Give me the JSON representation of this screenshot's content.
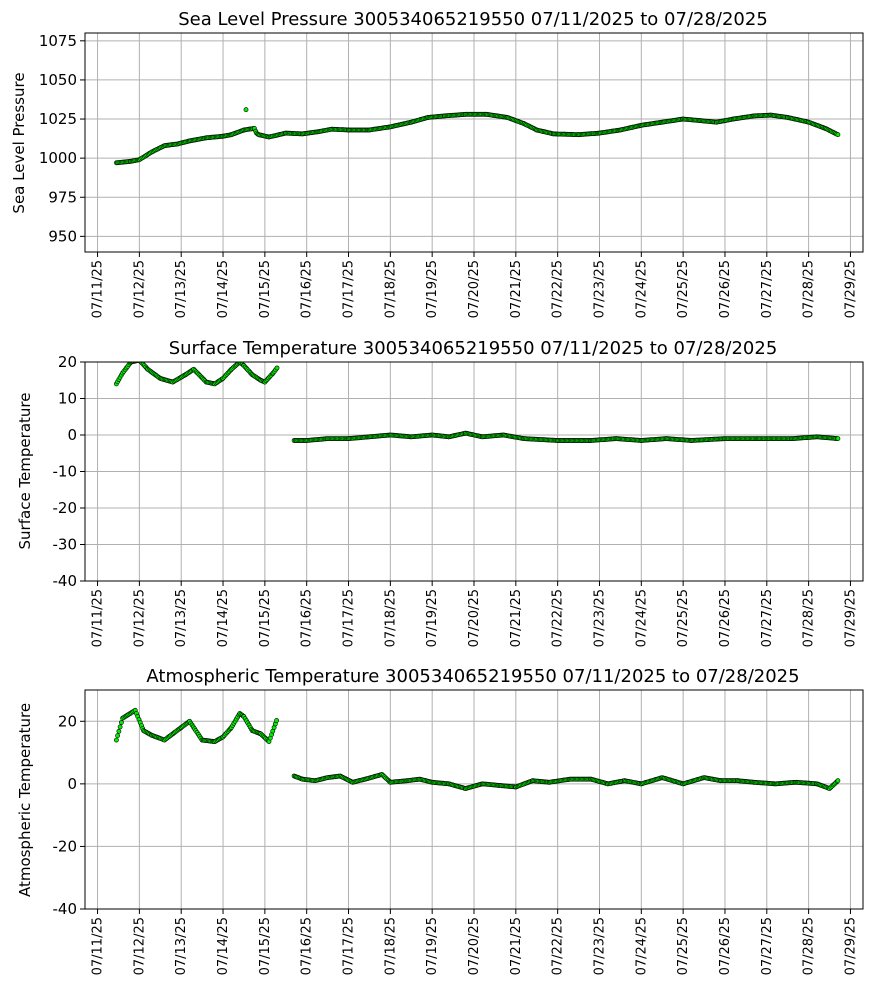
{
  "chart_data": [
    {
      "type": "scatter",
      "title": "Sea Level Pressure 300534065219550  07/11/2025 to 07/28/2025",
      "ylabel": "Sea Level Pressure",
      "ylim": [
        940,
        1080
      ],
      "yticks": [
        950,
        975,
        1000,
        1025,
        1050,
        1075
      ],
      "xlim_days": [
        -0.3,
        18.3
      ],
      "xtick_labels": [
        "07/11/25",
        "07/12/25",
        "07/13/25",
        "07/14/25",
        "07/15/25",
        "07/16/25",
        "07/17/25",
        "07/18/25",
        "07/19/25",
        "07/20/25",
        "07/21/25",
        "07/22/25",
        "07/23/25",
        "07/24/25",
        "07/25/25",
        "07/26/25",
        "07/27/25",
        "07/28/25",
        "07/29/25"
      ],
      "grid": true,
      "marker_color": "#00ee00",
      "series": [
        {
          "knots": [
            [
              0.45,
              997
            ],
            [
              0.8,
              998
            ],
            [
              1.0,
              999
            ],
            [
              1.3,
              1004
            ],
            [
              1.6,
              1008
            ],
            [
              1.9,
              1009
            ],
            [
              2.2,
              1011
            ],
            [
              2.6,
              1013
            ],
            [
              3.0,
              1014
            ],
            [
              3.2,
              1015
            ],
            [
              3.5,
              1018
            ],
            [
              3.75,
              1019
            ],
            [
              3.8,
              1016
            ],
            [
              3.85,
              1015
            ],
            [
              4.1,
              1013.5
            ],
            [
              4.5,
              1016
            ],
            [
              4.9,
              1015.5
            ],
            [
              5.3,
              1017
            ],
            [
              5.6,
              1018.5
            ],
            [
              6.0,
              1018
            ],
            [
              6.5,
              1018
            ],
            [
              7.0,
              1020
            ],
            [
              7.5,
              1023
            ],
            [
              7.9,
              1026
            ],
            [
              8.3,
              1027
            ],
            [
              8.8,
              1028
            ],
            [
              9.3,
              1028
            ],
            [
              9.8,
              1026
            ],
            [
              10.2,
              1022
            ],
            [
              10.5,
              1018
            ],
            [
              10.9,
              1015.5
            ],
            [
              11.5,
              1015
            ],
            [
              12.0,
              1016
            ],
            [
              12.5,
              1018
            ],
            [
              13.0,
              1021
            ],
            [
              13.5,
              1023
            ],
            [
              14.0,
              1025
            ],
            [
              14.4,
              1024
            ],
            [
              14.8,
              1023
            ],
            [
              15.2,
              1025
            ],
            [
              15.7,
              1027
            ],
            [
              16.1,
              1027.5
            ],
            [
              16.5,
              1026
            ],
            [
              17.0,
              1023
            ],
            [
              17.4,
              1019
            ],
            [
              17.7,
              1015
            ]
          ],
          "outliers": [
            [
              3.55,
              1031
            ]
          ]
        }
      ]
    },
    {
      "type": "scatter",
      "title": "Surface Temperature 300534065219550  07/11/2025 to 07/28/2025",
      "ylabel": "Surface Temperature",
      "ylim": [
        -40,
        20
      ],
      "yticks": [
        -40,
        -30,
        -20,
        -10,
        0,
        10,
        20
      ],
      "xlim_days": [
        -0.3,
        18.3
      ],
      "xtick_labels": [
        "07/11/25",
        "07/12/25",
        "07/13/25",
        "07/14/25",
        "07/15/25",
        "07/16/25",
        "07/17/25",
        "07/18/25",
        "07/19/25",
        "07/20/25",
        "07/21/25",
        "07/22/25",
        "07/23/25",
        "07/24/25",
        "07/25/25",
        "07/26/25",
        "07/27/25",
        "07/28/25",
        "07/29/25"
      ],
      "grid": true,
      "marker_color": "#00ee00",
      "series": [
        {
          "knots": [
            [
              0.45,
              14
            ],
            [
              0.6,
              17
            ],
            [
              0.8,
              20
            ],
            [
              1.0,
              20.5
            ],
            [
              1.2,
              18
            ],
            [
              1.5,
              15.5
            ],
            [
              1.8,
              14.5
            ],
            [
              2.1,
              16.5
            ],
            [
              2.3,
              18
            ],
            [
              2.6,
              14.5
            ],
            [
              2.8,
              14
            ],
            [
              3.0,
              15.5
            ],
            [
              3.2,
              18
            ],
            [
              3.4,
              20
            ],
            [
              3.5,
              19
            ],
            [
              3.7,
              16.5
            ],
            [
              3.9,
              15
            ],
            [
              4.0,
              14.5
            ],
            [
              4.2,
              17
            ],
            [
              4.3,
              18.5
            ],
            [
              4.35,
              null
            ],
            [
              4.7,
              -1.5
            ],
            [
              5.0,
              -1.5
            ],
            [
              5.5,
              -1
            ],
            [
              6.0,
              -1
            ],
            [
              6.5,
              -0.5
            ],
            [
              7.0,
              0
            ],
            [
              7.5,
              -0.5
            ],
            [
              8.0,
              0
            ],
            [
              8.4,
              -0.5
            ],
            [
              8.8,
              0.5
            ],
            [
              9.2,
              -0.5
            ],
            [
              9.7,
              0
            ],
            [
              10.2,
              -1
            ],
            [
              11.0,
              -1.5
            ],
            [
              11.8,
              -1.5
            ],
            [
              12.4,
              -1
            ],
            [
              13.0,
              -1.5
            ],
            [
              13.6,
              -1
            ],
            [
              14.2,
              -1.5
            ],
            [
              15.0,
              -1
            ],
            [
              15.8,
              -1
            ],
            [
              16.6,
              -1
            ],
            [
              17.2,
              -0.5
            ],
            [
              17.7,
              -1
            ]
          ]
        }
      ]
    },
    {
      "type": "scatter",
      "title": "Atmospheric Temperature 300534065219550  07/11/2025 to 07/28/2025",
      "ylabel": "Atmospheric Temperature",
      "ylim": [
        -40,
        30
      ],
      "yticks": [
        -40,
        -20,
        0,
        20
      ],
      "xlim_days": [
        -0.3,
        18.3
      ],
      "xtick_labels": [
        "07/11/25",
        "07/12/25",
        "07/13/25",
        "07/14/25",
        "07/15/25",
        "07/16/25",
        "07/17/25",
        "07/18/25",
        "07/19/25",
        "07/20/25",
        "07/21/25",
        "07/22/25",
        "07/23/25",
        "07/24/25",
        "07/25/25",
        "07/26/25",
        "07/27/25",
        "07/28/25",
        "07/29/25"
      ],
      "grid": true,
      "marker_color": "#00ee00",
      "series": [
        {
          "knots": [
            [
              0.45,
              14
            ],
            [
              0.6,
              21
            ],
            [
              0.9,
              23.5
            ],
            [
              1.1,
              17
            ],
            [
              1.3,
              15.5
            ],
            [
              1.6,
              14
            ],
            [
              2.0,
              18
            ],
            [
              2.2,
              20
            ],
            [
              2.5,
              14
            ],
            [
              2.8,
              13.5
            ],
            [
              3.0,
              15
            ],
            [
              3.2,
              18
            ],
            [
              3.4,
              22.5
            ],
            [
              3.5,
              21.5
            ],
            [
              3.7,
              17
            ],
            [
              3.9,
              16
            ],
            [
              4.1,
              13.5
            ],
            [
              4.3,
              21
            ],
            [
              4.35,
              null
            ],
            [
              4.7,
              2.5
            ],
            [
              4.9,
              1.5
            ],
            [
              5.2,
              1
            ],
            [
              5.5,
              2
            ],
            [
              5.8,
              2.5
            ],
            [
              6.1,
              0.5
            ],
            [
              6.4,
              1.5
            ],
            [
              6.8,
              3
            ],
            [
              7.0,
              0.5
            ],
            [
              7.4,
              1
            ],
            [
              7.7,
              1.5
            ],
            [
              8.0,
              0.5
            ],
            [
              8.4,
              0
            ],
            [
              8.8,
              -1.5
            ],
            [
              9.2,
              0
            ],
            [
              9.6,
              -0.5
            ],
            [
              10.0,
              -1
            ],
            [
              10.4,
              1
            ],
            [
              10.8,
              0.5
            ],
            [
              11.3,
              1.5
            ],
            [
              11.8,
              1.5
            ],
            [
              12.2,
              0
            ],
            [
              12.6,
              1
            ],
            [
              13.0,
              0
            ],
            [
              13.5,
              2
            ],
            [
              14.0,
              0
            ],
            [
              14.5,
              2
            ],
            [
              14.9,
              1
            ],
            [
              15.3,
              1
            ],
            [
              15.7,
              0.5
            ],
            [
              16.2,
              0
            ],
            [
              16.7,
              0.5
            ],
            [
              17.2,
              0
            ],
            [
              17.5,
              -1.5
            ],
            [
              17.7,
              1
            ]
          ]
        }
      ]
    }
  ]
}
